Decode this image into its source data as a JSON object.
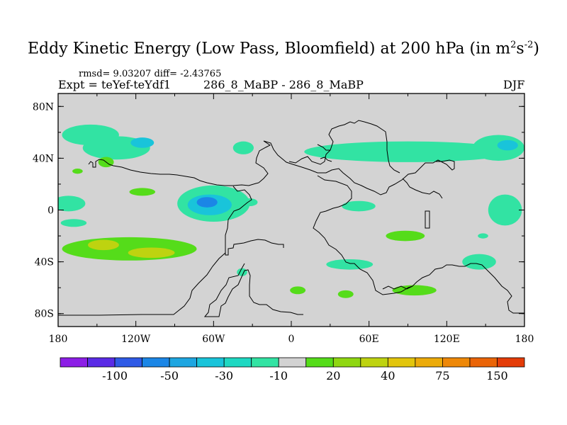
{
  "title": {
    "main": "Eddy Kinetic Energy (Low Pass, Bloomfield) at 200 hPa (in m",
    "sup1": "2",
    "mid": "s",
    "sup2": "-2",
    "end": ")"
  },
  "stats": "rmsd= 9.03207 diff= -2.43765",
  "expt": "Expt = teYef-teYdf1",
  "case": "286_8_MaBP - 286_8_MaBP",
  "season": "DJF",
  "colors": {
    "background": "#d3d3d3",
    "map_outline": "#000000"
  },
  "chart_data": {
    "type": "heatmap",
    "xlim": [
      -180,
      180
    ],
    "ylim": [
      -90,
      90
    ],
    "x_ticks": [
      -180,
      -120,
      -60,
      0,
      60,
      120,
      180
    ],
    "x_tick_labels": [
      "180",
      "120W",
      "60W",
      "0",
      "60E",
      "120E",
      "180"
    ],
    "y_ticks": [
      80,
      40,
      0,
      -40,
      -80
    ],
    "y_tick_labels": [
      "80N",
      "40N",
      "0",
      "40S",
      "80S"
    ],
    "colorbar": {
      "bins": [
        "#8c1ee6",
        "#5a2be6",
        "#2f5ae6",
        "#1b86e6",
        "#1ea6e1",
        "#19c4da",
        "#1ed8c2",
        "#32e3a3",
        "#d2d2d2",
        "#55dc1a",
        "#8fd712",
        "#bed310",
        "#e2c50c",
        "#ecab0a",
        "#ee8808",
        "#ea6407",
        "#e43c08"
      ],
      "labels": [
        "-100",
        "-50",
        "-30",
        "-10",
        "20",
        "40",
        "75",
        "150"
      ]
    },
    "features": [
      {
        "lon": -155,
        "lat": 58,
        "rx": 22,
        "ry": 8,
        "level": -10
      },
      {
        "lon": -135,
        "lat": 48,
        "rx": 26,
        "ry": 9,
        "level": -10
      },
      {
        "lon": -115,
        "lat": 52,
        "rx": 9,
        "ry": 4,
        "level": -30
      },
      {
        "lon": -143,
        "lat": 37,
        "rx": 6,
        "ry": 4,
        "level": 20
      },
      {
        "lon": -165,
        "lat": 30,
        "rx": 4,
        "ry": 2,
        "level": 20
      },
      {
        "lon": -115,
        "lat": 14,
        "rx": 10,
        "ry": 3,
        "level": 20
      },
      {
        "lon": -172,
        "lat": 5,
        "rx": 13,
        "ry": 6,
        "level": -10
      },
      {
        "lon": -168,
        "lat": -10,
        "rx": 10,
        "ry": 3,
        "level": -10
      },
      {
        "lon": -60,
        "lat": 5,
        "rx": 28,
        "ry": 14,
        "level": -10
      },
      {
        "lon": -63,
        "lat": 4,
        "rx": 17,
        "ry": 8,
        "level": -30
      },
      {
        "lon": -65,
        "lat": 6,
        "rx": 8,
        "ry": 4,
        "level": -50
      },
      {
        "lon": -32,
        "lat": 6,
        "rx": 6,
        "ry": 3,
        "level": -10
      },
      {
        "lon": -125,
        "lat": -30,
        "rx": 52,
        "ry": 9,
        "level": 20
      },
      {
        "lon": -145,
        "lat": -27,
        "rx": 12,
        "ry": 4,
        "level": 40
      },
      {
        "lon": -108,
        "lat": -33,
        "rx": 18,
        "ry": 4,
        "level": 40
      },
      {
        "lon": -37,
        "lat": 48,
        "rx": 8,
        "ry": 5,
        "level": -10
      },
      {
        "lon": 90,
        "lat": 45,
        "rx": 80,
        "ry": 8,
        "level": -10
      },
      {
        "lon": 160,
        "lat": 48,
        "rx": 20,
        "ry": 10,
        "level": -10
      },
      {
        "lon": 167,
        "lat": 50,
        "rx": 8,
        "ry": 4,
        "level": -30
      },
      {
        "lon": 165,
        "lat": 0,
        "rx": 13,
        "ry": 12,
        "level": -10
      },
      {
        "lon": 52,
        "lat": 3,
        "rx": 13,
        "ry": 4,
        "level": -10
      },
      {
        "lon": 88,
        "lat": -20,
        "rx": 15,
        "ry": 4,
        "level": 20
      },
      {
        "lon": 145,
        "lat": -40,
        "rx": 13,
        "ry": 6,
        "level": -10
      },
      {
        "lon": 45,
        "lat": -42,
        "rx": 18,
        "ry": 4,
        "level": -10
      },
      {
        "lon": 95,
        "lat": -62,
        "rx": 17,
        "ry": 4,
        "level": 20
      },
      {
        "lon": 5,
        "lat": -62,
        "rx": 6,
        "ry": 3,
        "level": 20
      },
      {
        "lon": 42,
        "lat": -65,
        "rx": 6,
        "ry": 3,
        "level": 20
      },
      {
        "lon": -38,
        "lat": -48,
        "rx": 4,
        "ry": 3,
        "level": -10
      },
      {
        "lon": 148,
        "lat": -20,
        "rx": 4,
        "ry": 2,
        "level": -10
      }
    ]
  }
}
